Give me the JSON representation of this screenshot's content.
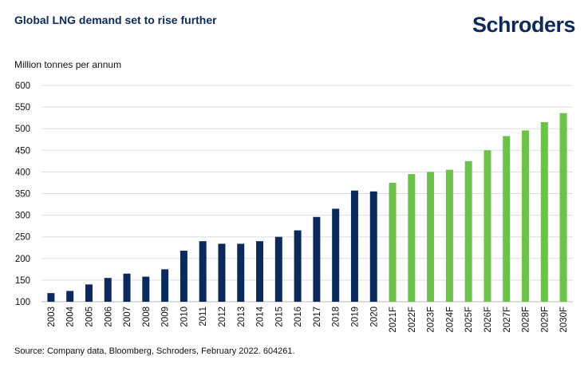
{
  "header": {
    "title": "Global LNG demand set to rise further",
    "brand": "Schroders"
  },
  "footer": {
    "source": "Source: Company data, Bloomberg, Schroders, February 2022. 604261."
  },
  "colors": {
    "actual": "#0b2a5b",
    "forecast": "#6cc24a",
    "grid": "#dddddd",
    "text": "#111111"
  },
  "chart_data": {
    "type": "bar",
    "title": "Global LNG demand set to rise further",
    "ylabel": "Million tonnes per annum",
    "xlabel": "",
    "ylim": [
      100,
      600
    ],
    "yticks": [
      100,
      150,
      200,
      250,
      300,
      350,
      400,
      450,
      500,
      550,
      600
    ],
    "grid": true,
    "categories": [
      "2003",
      "2004",
      "2005",
      "2006",
      "2007",
      "2008",
      "2009",
      "2010",
      "2011",
      "2012",
      "2013",
      "2014",
      "2015",
      "2016",
      "2017",
      "2018",
      "2019",
      "2020",
      "2021F",
      "2022F",
      "2023F",
      "2024F",
      "2025F",
      "2026F",
      "2027F",
      "2028F",
      "2029F",
      "2030F"
    ],
    "values": [
      120,
      125,
      140,
      155,
      165,
      158,
      175,
      218,
      240,
      234,
      234,
      240,
      250,
      265,
      296,
      315,
      357,
      355,
      375,
      395,
      400,
      405,
      425,
      450,
      483,
      496,
      515,
      536
    ],
    "forecast_from_index": 18
  }
}
